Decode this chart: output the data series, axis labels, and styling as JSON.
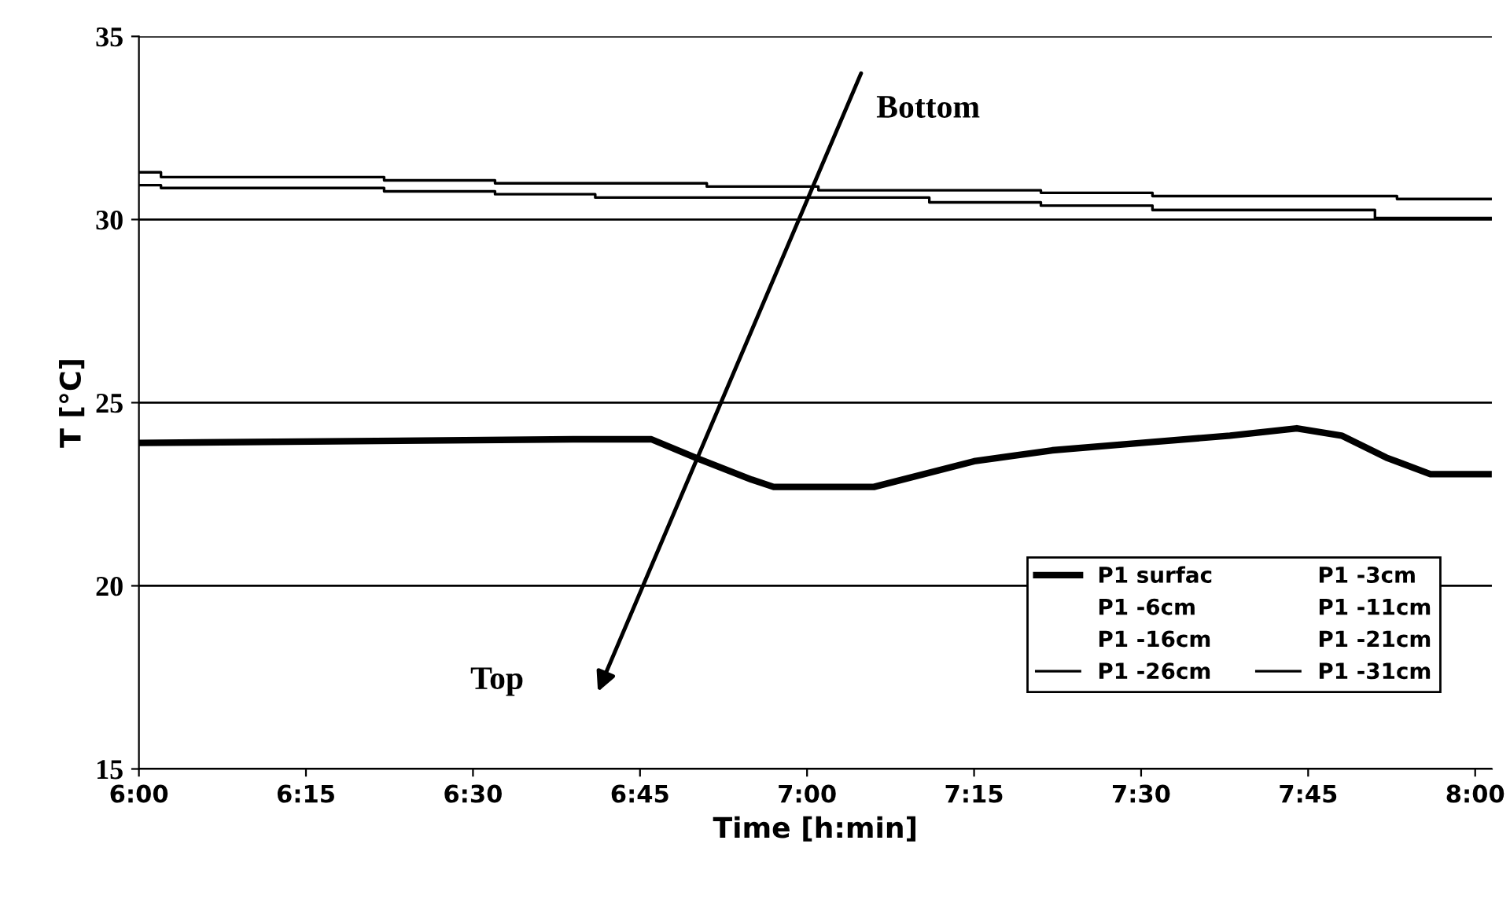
{
  "chart_data": {
    "type": "line",
    "xlabel": "Time [h:min]",
    "ylabel": "T [°C]",
    "xlim": [
      6,
      8.025
    ],
    "xticks": [
      {
        "value": 6,
        "label": "6:00"
      },
      {
        "value": 6.25,
        "label": "6:15"
      },
      {
        "value": 6.5,
        "label": "6:30"
      },
      {
        "value": 6.75,
        "label": "6:45"
      },
      {
        "value": 7,
        "label": "7:00"
      },
      {
        "value": 7.25,
        "label": "7:15"
      },
      {
        "value": 7.5,
        "label": "7:30"
      },
      {
        "value": 7.75,
        "label": "7:45"
      },
      {
        "value": 8,
        "label": "8:00"
      }
    ],
    "ylim": [
      15,
      35
    ],
    "yticks": [
      15,
      20,
      25,
      30,
      35
    ],
    "grid": "y",
    "legend": "bottom right",
    "marker": "none",
    "line_style": "solid",
    "annotations": [
      "Bottom",
      "Top"
    ],
    "series": [
      {
        "name": "P1 surfac",
        "color": "#000000",
        "x": [
          6,
          6.65,
          6.767,
          6.833,
          6.917,
          6.95,
          7.1,
          7.25,
          7.367,
          7.5,
          7.633,
          7.733,
          7.8,
          7.867,
          7.933,
          8.02
        ],
        "values": [
          23.9,
          24.0,
          24.0,
          23.5,
          22.9,
          22.7,
          22.7,
          23.4,
          23.7,
          23.9,
          24.1,
          24.3,
          24.1,
          23.5,
          23.05,
          23.05
        ]
      },
      {
        "name": "P1 -3cm"
      },
      {
        "name": "P1 -6cm"
      },
      {
        "name": "P1 -11cm"
      },
      {
        "name": "P1 -16cm"
      },
      {
        "name": "P1 -21cm"
      },
      {
        "name": "P1 -26cm",
        "type": "step",
        "color": "#000000",
        "x": [
          6,
          6.033,
          6.367,
          6.533,
          6.683,
          7.183,
          7.35,
          7.517,
          7.85,
          8.025
        ],
        "values": [
          30.94,
          30.86,
          30.77,
          30.69,
          30.6,
          30.47,
          30.38,
          30.26,
          30.04,
          30.04
        ]
      },
      {
        "name": "P1 -31cm",
        "type": "step",
        "color": "#000000",
        "x": [
          6,
          6.033,
          6.367,
          6.533,
          6.85,
          7.017,
          7.35,
          7.517,
          7.883,
          8.025
        ],
        "values": [
          31.29,
          31.16,
          31.07,
          30.99,
          30.9,
          30.8,
          30.73,
          30.64,
          30.56,
          30.56
        ]
      }
    ]
  }
}
